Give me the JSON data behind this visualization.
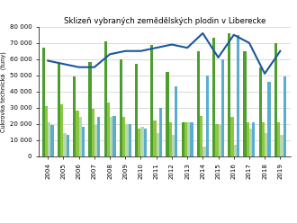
{
  "title": "Sklizeň vybraných zemědělských plodin v Liberecke",
  "ylabel": "Cukrovka technická  (tuny)",
  "years": [
    2004,
    2005,
    2006,
    2007,
    2008,
    2009,
    2010,
    2011,
    2012,
    2013,
    2014,
    2015,
    2016,
    2017,
    2018,
    2019
  ],
  "psenice": [
    67000,
    57000,
    49000,
    58000,
    71000,
    60000,
    57000,
    69000,
    52000,
    21000,
    65000,
    73000,
    76000,
    65000,
    55000,
    70000
  ],
  "jecmen": [
    31000,
    32000,
    28000,
    29000,
    33000,
    24000,
    17000,
    22000,
    21000,
    21000,
    25000,
    20000,
    24000,
    21000,
    21000,
    21000
  ],
  "repka": [
    21000,
    14000,
    24000,
    19000,
    24000,
    20000,
    18000,
    14000,
    13000,
    21000,
    6000,
    19000,
    7000,
    17000,
    14000,
    13000
  ],
  "cukrovka": [
    19000,
    13000,
    18000,
    24000,
    25000,
    20000,
    17000,
    30000,
    43000,
    21000,
    50000,
    60000,
    75000,
    21000,
    46000,
    49000
  ],
  "travni": [
    59000,
    57000,
    55000,
    55000,
    63000,
    65000,
    65000,
    67000,
    69000,
    67000,
    76000,
    61000,
    75000,
    70000,
    51000,
    65000
  ],
  "bar_psenice": "#4d9e2f",
  "bar_jecmen": "#8dc73f",
  "bar_repka": "#b8d9b0",
  "bar_cukrovka": "#5badd0",
  "line_travni": "#1a56a0",
  "ylim": [
    0,
    80000
  ],
  "yticks": [
    0,
    10000,
    20000,
    30000,
    40000,
    50000,
    60000,
    70000,
    80000
  ],
  "ytick_labels": [
    "0",
    "10 000",
    "20 000",
    "30 000",
    "40 000",
    "50 000",
    "60 000",
    "70 000",
    "80 000"
  ]
}
